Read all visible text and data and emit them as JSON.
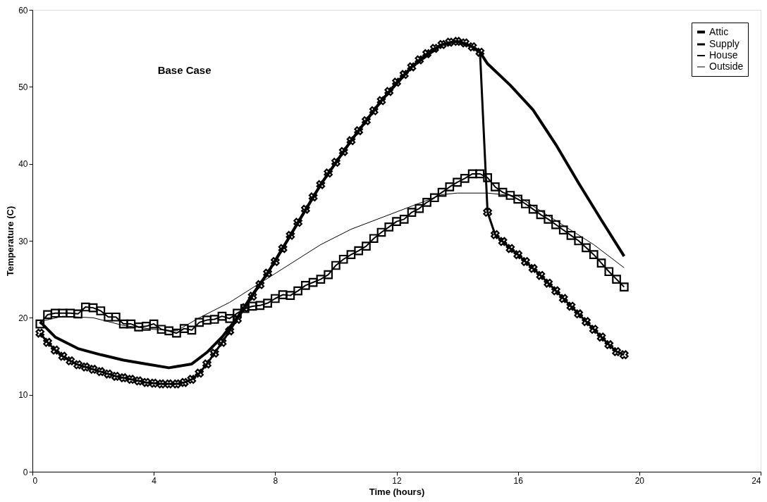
{
  "chart_data": {
    "type": "line",
    "title": "Base Case",
    "xlabel": "Time (hours)",
    "ylabel": "Temperature (C)",
    "xlim": [
      0,
      24
    ],
    "xticks": [
      0,
      4,
      8,
      12,
      16,
      20,
      24
    ],
    "ylim": [
      0,
      60
    ],
    "yticks": [
      0,
      10,
      20,
      30,
      40,
      50,
      60
    ],
    "grid": false,
    "legend": "top right",
    "series": [
      {
        "name": "Attic",
        "color": "#000000",
        "marker": "none",
        "x": [
          0.25,
          0.75,
          1.5,
          2.25,
          3.0,
          3.75,
          4.5,
          5.25,
          5.75,
          6.25,
          6.75,
          7.25,
          7.75,
          8.5,
          9.5,
          10.5,
          11.5,
          12.5,
          13.5,
          14.0,
          14.5,
          14.75,
          15.0,
          15.75,
          16.5,
          17.25,
          18.0,
          18.75,
          19.5
        ],
        "values": [
          19.5,
          17.5,
          16.0,
          15.2,
          14.5,
          14.0,
          13.5,
          14.0,
          15.5,
          17.5,
          20.0,
          23.0,
          25.8,
          30.7,
          37.3,
          43.0,
          48.2,
          52.6,
          55.5,
          55.9,
          55.2,
          54.5,
          53.0,
          50.2,
          47.0,
          42.5,
          37.5,
          32.7,
          28.0
        ]
      },
      {
        "name": "Supply",
        "color": "#000000",
        "marker": "cross",
        "x": [
          0.25,
          0.5,
          0.75,
          1.0,
          1.25,
          1.5,
          1.75,
          2.0,
          2.25,
          2.5,
          2.75,
          3.0,
          3.25,
          3.5,
          3.75,
          4.0,
          4.25,
          4.5,
          4.75,
          5.0,
          5.25,
          5.5,
          5.75,
          6.0,
          6.25,
          6.5,
          6.75,
          7.0,
          7.25,
          7.5,
          7.75,
          8.0,
          8.25,
          8.5,
          8.75,
          9.0,
          9.25,
          9.5,
          9.75,
          10.0,
          10.25,
          10.5,
          10.75,
          11.0,
          11.25,
          11.5,
          11.75,
          12.0,
          12.25,
          12.5,
          12.75,
          13.0,
          13.25,
          13.5,
          13.75,
          14.0,
          14.25,
          14.5,
          14.75,
          15.0,
          15.25,
          15.5,
          15.75,
          16.0,
          16.25,
          16.5,
          16.75,
          17.0,
          17.25,
          17.5,
          17.75,
          18.0,
          18.25,
          18.5,
          18.75,
          19.0,
          19.25,
          19.5
        ],
        "values": [
          18.0,
          16.8,
          15.8,
          15.0,
          14.4,
          13.9,
          13.6,
          13.3,
          13.0,
          12.7,
          12.4,
          12.2,
          12.0,
          11.8,
          11.6,
          11.5,
          11.4,
          11.4,
          11.4,
          11.6,
          12.0,
          12.8,
          14.0,
          15.4,
          16.8,
          18.3,
          19.8,
          21.3,
          22.8,
          24.3,
          25.8,
          27.3,
          29.0,
          30.7,
          32.4,
          34.1,
          35.7,
          37.3,
          38.8,
          40.2,
          41.6,
          43.0,
          44.3,
          45.6,
          46.9,
          48.2,
          49.4,
          50.6,
          51.6,
          52.6,
          53.5,
          54.3,
          55.0,
          55.5,
          55.8,
          55.9,
          55.7,
          55.2,
          54.5,
          33.7,
          30.8,
          29.9,
          29.0,
          28.2,
          27.3,
          26.4,
          25.5,
          24.5,
          23.5,
          22.5,
          21.5,
          20.5,
          19.5,
          18.5,
          17.5,
          16.5,
          15.6,
          15.2
        ]
      },
      {
        "name": "House",
        "color": "#000000",
        "marker": "square",
        "x": [
          0.25,
          0.5,
          0.75,
          1.0,
          1.25,
          1.5,
          1.75,
          2.0,
          2.25,
          2.5,
          2.75,
          3.0,
          3.25,
          3.5,
          3.75,
          4.0,
          4.25,
          4.5,
          4.75,
          5.0,
          5.25,
          5.5,
          5.75,
          6.0,
          6.25,
          6.5,
          6.75,
          7.0,
          7.25,
          7.5,
          7.75,
          8.0,
          8.25,
          8.5,
          8.75,
          9.0,
          9.25,
          9.5,
          9.75,
          10.0,
          10.25,
          10.5,
          10.75,
          11.0,
          11.25,
          11.5,
          11.75,
          12.0,
          12.25,
          12.5,
          12.75,
          13.0,
          13.25,
          13.5,
          13.75,
          14.0,
          14.25,
          14.5,
          14.75,
          15.0,
          15.25,
          15.5,
          15.75,
          16.0,
          16.25,
          16.5,
          16.75,
          17.0,
          17.25,
          17.5,
          17.75,
          18.0,
          18.25,
          18.5,
          18.75,
          19.0,
          19.25,
          19.5
        ],
        "values": [
          19.2,
          20.4,
          20.6,
          20.6,
          20.6,
          20.5,
          21.4,
          21.3,
          20.9,
          20.1,
          20.1,
          19.2,
          19.2,
          18.8,
          18.9,
          19.2,
          18.5,
          18.3,
          18.0,
          18.6,
          18.4,
          19.4,
          19.7,
          19.8,
          20.2,
          19.9,
          20.6,
          21.2,
          21.5,
          21.6,
          21.9,
          22.5,
          23.0,
          22.9,
          23.5,
          24.2,
          24.6,
          25.0,
          25.6,
          26.8,
          27.6,
          28.2,
          28.7,
          29.3,
          30.3,
          31.1,
          31.8,
          32.5,
          32.8,
          33.7,
          34.2,
          35.0,
          35.6,
          36.3,
          37.0,
          37.6,
          38.1,
          38.7,
          38.7,
          38.2,
          37.0,
          36.3,
          35.9,
          35.4,
          34.8,
          34.1,
          33.4,
          32.8,
          32.1,
          31.4,
          30.7,
          30.0,
          29.1,
          28.2,
          27.1,
          26.0,
          25.0,
          24.0
        ]
      },
      {
        "name": "Outside",
        "color": "#000000",
        "marker": "none",
        "x": [
          0.25,
          1.0,
          2.0,
          3.0,
          4.0,
          4.75,
          5.5,
          6.5,
          7.5,
          8.5,
          9.5,
          10.5,
          11.5,
          12.5,
          13.5,
          14.0,
          15.0,
          15.5,
          16.0,
          16.5,
          17.5,
          18.5,
          19.5
        ],
        "values": [
          19.5,
          20.2,
          20.0,
          19.0,
          18.5,
          18.3,
          20.0,
          22.0,
          24.5,
          27.0,
          29.5,
          31.5,
          33.0,
          34.5,
          36.0,
          36.2,
          36.2,
          36.0,
          35.8,
          34.5,
          32.0,
          29.5,
          26.5
        ]
      }
    ]
  }
}
